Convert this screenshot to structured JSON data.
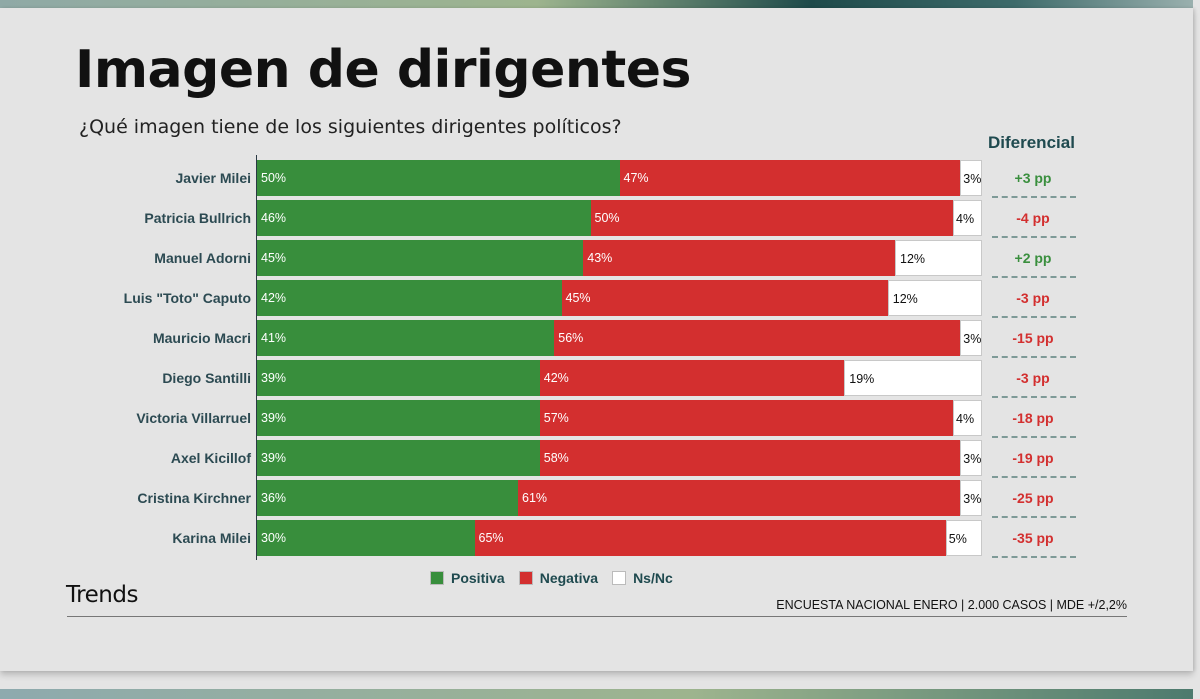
{
  "header": {
    "title": "Imagen de dirigentes",
    "subtitle": "¿Qué imagen tiene de los siguientes dirigentes políticos?",
    "diff_header": "Diferencial"
  },
  "colors": {
    "positive": "#388e3c",
    "negative": "#d32f2f",
    "ns": "#ffffff",
    "diff_up": "#3a8f3e",
    "diff_down": "#d32f2f",
    "accent": "#1f4a4f"
  },
  "legend": [
    {
      "label": "Positiva",
      "key": "positive"
    },
    {
      "label": "Negativa",
      "key": "negative"
    },
    {
      "label": "Ns/Nc",
      "key": "ns"
    }
  ],
  "footer": {
    "brand": "Trends",
    "source": "ENCUESTA NACIONAL ENERO | 2.000 CASOS | MDE +/2,2%"
  },
  "chart_data": {
    "type": "bar",
    "stacked": true,
    "orientation": "horizontal",
    "title": "Imagen de dirigentes",
    "subtitle": "¿Qué imagen tiene de los siguientes dirigentes políticos?",
    "xlim": [
      0,
      100
    ],
    "unit": "%",
    "legend_position": "bottom",
    "categories": [
      "Javier Milei",
      "Patricia Bullrich",
      "Manuel Adorni",
      "Luis \"Toto\" Caputo",
      "Mauricio Macri",
      "Diego Santilli",
      "Victoria Villarruel",
      "Axel Kicillof",
      "Cristina Kirchner",
      "Karina Milei"
    ],
    "series": [
      {
        "name": "Positiva",
        "values": [
          50,
          46,
          45,
          42,
          41,
          39,
          39,
          39,
          36,
          30
        ]
      },
      {
        "name": "Negativa",
        "values": [
          47,
          50,
          43,
          45,
          56,
          42,
          57,
          58,
          61,
          65
        ]
      },
      {
        "name": "Ns/Nc",
        "values": [
          3,
          4,
          12,
          12,
          3,
          19,
          4,
          3,
          3,
          5
        ]
      }
    ],
    "differential": {
      "label": "Diferencial",
      "values": [
        "+3 pp",
        "-4 pp",
        "+2 pp",
        "-3 pp",
        "-15 pp",
        "-3 pp",
        "-18 pp",
        "-19 pp",
        "-25 pp",
        "-35 pp"
      ]
    }
  }
}
